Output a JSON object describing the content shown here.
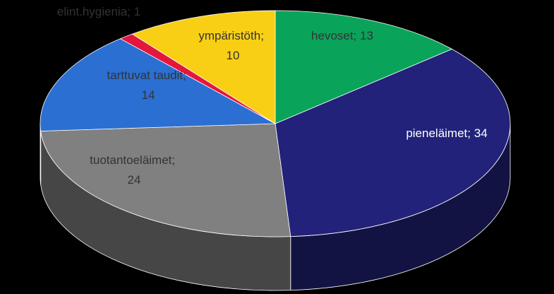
{
  "chart_data": {
    "type": "pie3d",
    "categories": [
      "hevoset",
      "pieneläimet",
      "tuotantoeläimet",
      "tarttuvat taudit",
      "elint.hygienia",
      "ympäristöth"
    ],
    "values": [
      13,
      34,
      24,
      14,
      1,
      10
    ],
    "colors": [
      "#0aa35a",
      "#22227a",
      "#808080",
      "#2b6fd2",
      "#e3173e",
      "#f8cf14"
    ],
    "label_separator": "; "
  }
}
